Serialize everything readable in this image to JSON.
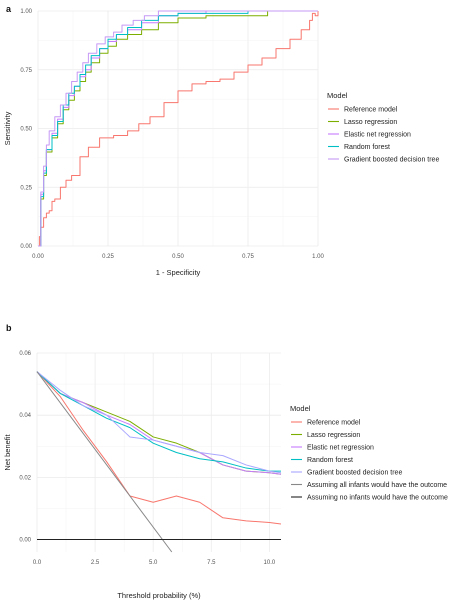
{
  "chart_data": [
    {
      "panel": "a",
      "type": "line",
      "xlabel": "1 - Specificity",
      "ylabel": "Sensitivity",
      "xlim": [
        0,
        1
      ],
      "ylim": [
        0,
        1
      ],
      "xticks": [
        "0.00",
        "0.25",
        "0.50",
        "0.75",
        "1.00"
      ],
      "yticks": [
        "0.00",
        "0.25",
        "0.50",
        "0.75",
        "1.00"
      ],
      "grid": true,
      "legend_position": "right",
      "legend_title": "Model",
      "series": [
        {
          "name": "Reference model",
          "color": "#F8766D",
          "x": [
            0,
            0.005,
            0.01,
            0.02,
            0.03,
            0.04,
            0.05,
            0.06,
            0.08,
            0.1,
            0.12,
            0.15,
            0.18,
            0.22,
            0.27,
            0.32,
            0.36,
            0.4,
            0.45,
            0.5,
            0.55,
            0.6,
            0.65,
            0.7,
            0.75,
            0.8,
            0.85,
            0.9,
            0.94,
            0.97,
            0.98,
            0.99,
            1.0
          ],
          "y": [
            0,
            0.04,
            0.08,
            0.12,
            0.14,
            0.15,
            0.19,
            0.2,
            0.25,
            0.28,
            0.3,
            0.38,
            0.42,
            0.46,
            0.47,
            0.49,
            0.52,
            0.55,
            0.61,
            0.66,
            0.69,
            0.7,
            0.71,
            0.74,
            0.77,
            0.8,
            0.84,
            0.88,
            0.92,
            0.96,
            0.99,
            0.98,
            1.0
          ]
        },
        {
          "name": "Lasso regression",
          "color": "#7CAE00",
          "x": [
            0,
            0.01,
            0.02,
            0.03,
            0.05,
            0.07,
            0.09,
            0.11,
            0.13,
            0.15,
            0.17,
            0.19,
            0.22,
            0.25,
            0.28,
            0.32,
            0.37,
            0.43,
            0.5,
            0.6,
            0.7,
            0.82,
            1.0
          ],
          "y": [
            0,
            0.2,
            0.3,
            0.4,
            0.46,
            0.52,
            0.58,
            0.62,
            0.66,
            0.7,
            0.74,
            0.78,
            0.82,
            0.85,
            0.88,
            0.9,
            0.92,
            0.95,
            0.97,
            0.98,
            0.98,
            1.0,
            1.0
          ]
        },
        {
          "name": "Elastic net regression",
          "color": "#C77CFF",
          "x": [
            0,
            0.01,
            0.02,
            0.03,
            0.05,
            0.07,
            0.09,
            0.11,
            0.13,
            0.15,
            0.17,
            0.19,
            0.22,
            0.25,
            0.28,
            0.32,
            0.37,
            0.43,
            0.5,
            0.6,
            0.75,
            1.0
          ],
          "y": [
            0,
            0.22,
            0.32,
            0.41,
            0.48,
            0.54,
            0.59,
            0.64,
            0.68,
            0.72,
            0.75,
            0.8,
            0.84,
            0.87,
            0.9,
            0.92,
            0.95,
            0.98,
            0.99,
            1.0,
            1.0,
            1.0
          ]
        },
        {
          "name": "Random forest",
          "color": "#00BFC4",
          "x": [
            0,
            0.01,
            0.02,
            0.03,
            0.05,
            0.07,
            0.09,
            0.11,
            0.13,
            0.15,
            0.17,
            0.19,
            0.22,
            0.25,
            0.28,
            0.32,
            0.37,
            0.43,
            0.5,
            0.62,
            0.75,
            1.0
          ],
          "y": [
            0,
            0.21,
            0.31,
            0.41,
            0.47,
            0.53,
            0.6,
            0.65,
            0.68,
            0.73,
            0.77,
            0.81,
            0.84,
            0.88,
            0.9,
            0.93,
            0.96,
            0.98,
            0.99,
            0.99,
            1.0,
            1.0
          ]
        },
        {
          "name": "Gradient boosted decision tree",
          "color": "#C699F5",
          "x": [
            0,
            0.01,
            0.02,
            0.03,
            0.04,
            0.06,
            0.08,
            0.1,
            0.12,
            0.14,
            0.16,
            0.18,
            0.21,
            0.24,
            0.27,
            0.3,
            0.34,
            0.38,
            0.43,
            0.5,
            0.62,
            0.8,
            1.0
          ],
          "y": [
            0,
            0.23,
            0.34,
            0.43,
            0.49,
            0.55,
            0.6,
            0.65,
            0.7,
            0.74,
            0.78,
            0.82,
            0.86,
            0.89,
            0.91,
            0.94,
            0.96,
            0.98,
            1.0,
            1.0,
            1.0,
            1.0,
            1.0
          ]
        }
      ]
    },
    {
      "panel": "b",
      "type": "line",
      "xlabel": "Threshold probability (%)",
      "ylabel": "Net benefit",
      "xlim": [
        0,
        10.5
      ],
      "ylim": [
        -0.004,
        0.06
      ],
      "xticks": [
        "0.0",
        "2.5",
        "5.0",
        "7.5",
        "10.0"
      ],
      "yticks": [
        "0.00",
        "0.02",
        "0.04",
        "0.06"
      ],
      "grid": true,
      "legend_position": "right",
      "legend_title": "Model",
      "series": [
        {
          "name": "Reference model",
          "color": "#F8766D",
          "x": [
            0,
            1,
            2,
            3,
            4,
            5,
            6,
            7,
            8,
            9,
            10,
            10.5
          ],
          "y": [
            0.054,
            0.046,
            0.035,
            0.025,
            0.014,
            0.012,
            0.014,
            0.012,
            0.007,
            0.006,
            0.0055,
            0.005
          ]
        },
        {
          "name": "Lasso regression",
          "color": "#7CAE00",
          "x": [
            0,
            1,
            2,
            3,
            4,
            5,
            6,
            7,
            8,
            9,
            10,
            10.5
          ],
          "y": [
            0.054,
            0.047,
            0.044,
            0.041,
            0.038,
            0.033,
            0.031,
            0.028,
            0.024,
            0.022,
            0.0215,
            0.021
          ]
        },
        {
          "name": "Elastic net regression",
          "color": "#C77CFF",
          "x": [
            0,
            1,
            2,
            3,
            4,
            5,
            6,
            7,
            8,
            9,
            10,
            10.5
          ],
          "y": [
            0.054,
            0.047,
            0.044,
            0.04,
            0.037,
            0.032,
            0.03,
            0.028,
            0.024,
            0.022,
            0.0215,
            0.021
          ]
        },
        {
          "name": "Random forest",
          "color": "#00BFC4",
          "x": [
            0,
            1,
            2,
            3,
            4,
            5,
            6,
            7,
            8,
            9,
            10,
            10.5
          ],
          "y": [
            0.054,
            0.047,
            0.043,
            0.039,
            0.036,
            0.031,
            0.028,
            0.026,
            0.025,
            0.023,
            0.022,
            0.022
          ]
        },
        {
          "name": "Gradient boosted decision tree",
          "color": "#A9A7FF",
          "x": [
            0,
            1,
            2,
            3,
            4,
            5,
            6,
            7,
            8,
            9,
            10,
            10.5
          ],
          "y": [
            0.054,
            0.048,
            0.043,
            0.04,
            0.033,
            0.032,
            0.03,
            0.028,
            0.027,
            0.024,
            0.022,
            0.0215
          ]
        },
        {
          "name": "Assuming all infants would have the outcome",
          "color": "#888888",
          "x": [
            0,
            5.8
          ],
          "y": [
            0.054,
            -0.004
          ]
        },
        {
          "name": "Assuming no infants would have the outcome",
          "color": "#222222",
          "x": [
            0,
            10.5
          ],
          "y": [
            0,
            0
          ]
        }
      ]
    }
  ]
}
